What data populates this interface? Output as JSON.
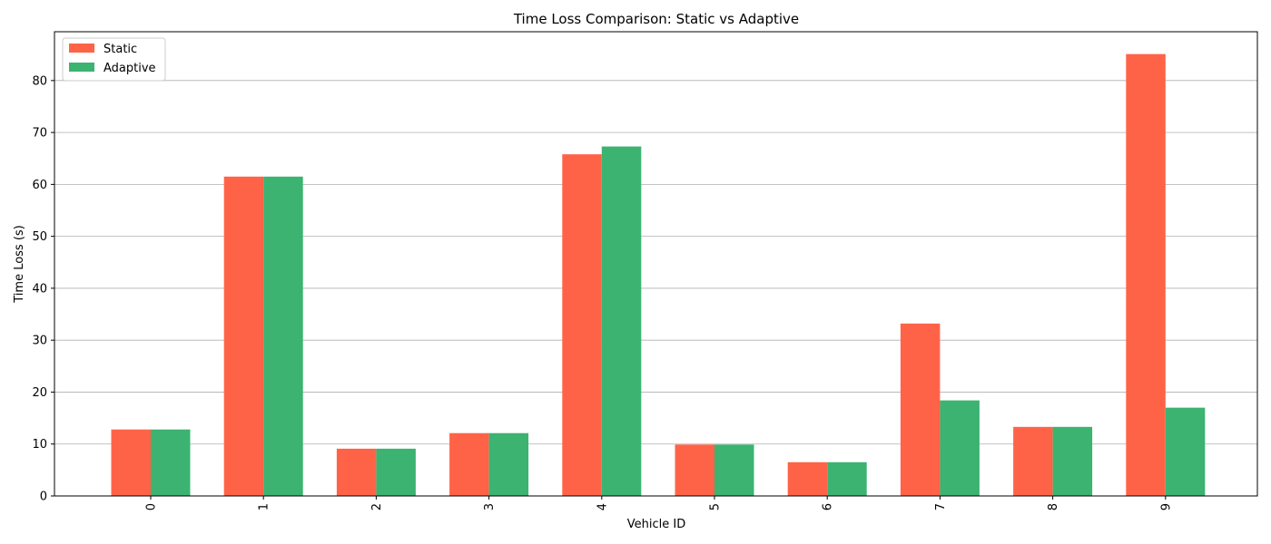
{
  "chart_data": {
    "type": "bar",
    "title": "Time Loss Comparison: Static vs Adaptive",
    "xlabel": "Vehicle ID",
    "ylabel": "Time Loss (s)",
    "categories": [
      "0",
      "1",
      "2",
      "3",
      "4",
      "5",
      "6",
      "7",
      "8",
      "9"
    ],
    "series": [
      {
        "name": "Static",
        "color": "#ff6347",
        "values": [
          12.8,
          61.5,
          9.1,
          12.1,
          65.8,
          9.9,
          6.5,
          33.2,
          13.3,
          85.1
        ]
      },
      {
        "name": "Adaptive",
        "color": "#3cb371",
        "values": [
          12.8,
          61.5,
          9.1,
          12.1,
          67.3,
          9.9,
          6.5,
          18.4,
          13.3,
          17.0
        ]
      }
    ],
    "yticks": [
      0,
      10,
      20,
      30,
      40,
      50,
      60,
      70,
      80
    ],
    "ylim": [
      0,
      89.4
    ],
    "grid": "y",
    "legend": "top-left"
  }
}
